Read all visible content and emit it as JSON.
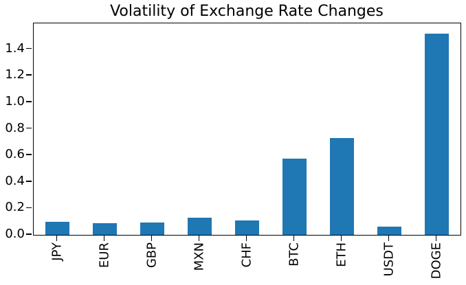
{
  "page": {
    "background": "#ffffff"
  },
  "chart_data": {
    "type": "bar",
    "title": "Volatility of Exchange Rate Changes",
    "categories": [
      "JPY",
      "EUR",
      "GBP",
      "MXN",
      "CHF",
      "BTC",
      "ETH",
      "USDT",
      "DOGE"
    ],
    "values": [
      0.099,
      0.088,
      0.093,
      0.128,
      0.11,
      0.574,
      0.728,
      0.061,
      1.517
    ],
    "xlabel": "",
    "ylabel": "",
    "ylim": [
      0,
      1.595
    ],
    "yticks": [
      0.0,
      0.2,
      0.4,
      0.6,
      0.8,
      1.0,
      1.2,
      1.4
    ],
    "ytick_labels": [
      "0.0",
      "0.2",
      "0.4",
      "0.6",
      "0.8",
      "1.0",
      "1.2",
      "1.4"
    ],
    "xtick_rotation": 90,
    "bar_color": "#1f77b4",
    "axis_color": "#000000",
    "bar_width_fraction": 0.5,
    "grid": false,
    "legend": null
  }
}
